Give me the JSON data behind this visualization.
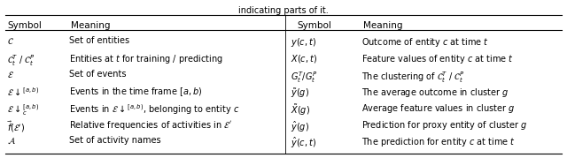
{
  "title": "indicating parts of it.",
  "bg_color": "#ffffff",
  "text_color": "#000000",
  "figsize": [
    6.4,
    1.79
  ],
  "dpi": 100,
  "left_symbols": [
    "$\\mathcal{C}$",
    "$\\mathcal{C}_t^T$ / $\\mathcal{C}_t^P$",
    "$\\mathcal{E}$",
    "$\\mathcal{E}\\downarrow^{[a,b)}$",
    "$\\mathcal{E}\\downarrow_c^{[a,b)}$",
    "$\\vec{f}(\\mathcal{E}')$",
    "$\\mathcal{A}$"
  ],
  "left_meanings": [
    "Set of entities",
    "Entities at $t$ for training / predicting",
    "Set of events",
    "Events in the time frame $[a, b)$",
    "Events in $\\mathcal{E}\\downarrow^{[a,b)}$, belonging to entity $c$",
    "Relative frequencies of activities in $\\mathcal{E}'$",
    "Set of activity names"
  ],
  "right_symbols": [
    "$y(c,t)$",
    "$X(c,t)$",
    "$G_t^T/G_t^P$",
    "$\\tilde{y}(g)$",
    "$\\tilde{X}(g)$",
    "$\\hat{y}(g)$",
    "$\\hat{y}(c,t)$"
  ],
  "right_meanings": [
    "Outcome of entity $c$ at time $t$",
    "Feature values of entity $c$ at time $t$",
    "The clustering of $\\mathcal{C}_t^T$ / $\\mathcal{C}_t^P$",
    "The average outcome in cluster $g$",
    "Average feature values in cluster $g$",
    "Prediction for proxy entity of cluster $g$",
    "The prediction for entity $c$ at time $t$"
  ]
}
